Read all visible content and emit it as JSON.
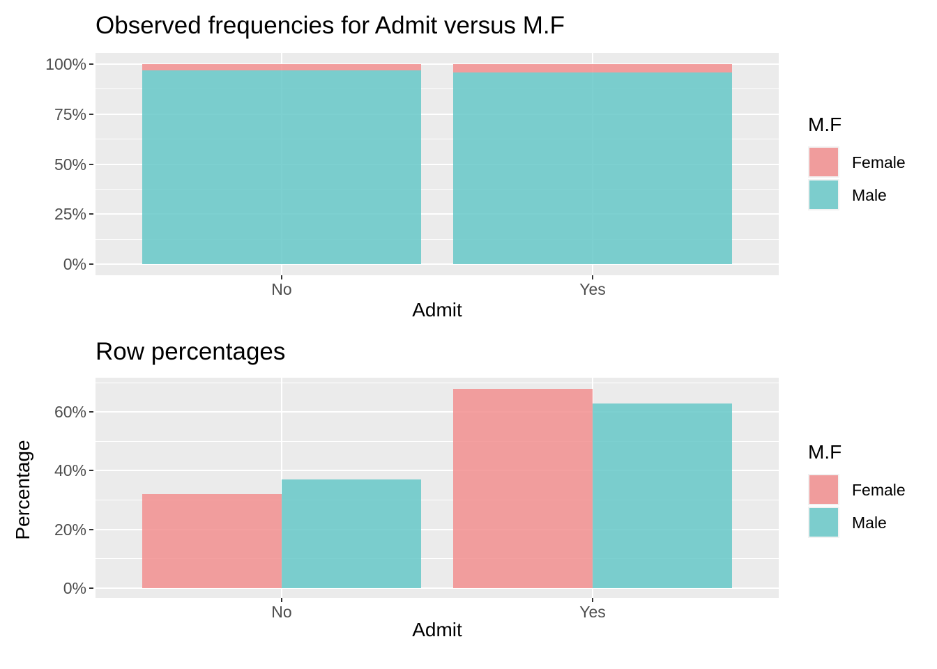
{
  "page": {
    "background": "#FFFFFF"
  },
  "styles": {
    "panel_background": "#EBEBEB",
    "grid_color": "#FFFFFF",
    "tick_label_color": "#4D4D4D",
    "tick_mark_color": "#333333",
    "text_color": "#000000",
    "legend_key_background": "#F2F2F2",
    "female_color": "#F09C9C",
    "male_color": "#7CCDCD"
  },
  "chart_data": [
    {
      "type": "bar",
      "variant": "stacked_fill_100",
      "title": "Observed frequencies for Admit versus M.F",
      "xlabel": "Admit",
      "ylabel": "",
      "legend_title": "M.F",
      "legend_position": "right",
      "grid": true,
      "categories": [
        "No",
        "Yes"
      ],
      "series": [
        {
          "name": "Female",
          "color": "#F09C9C",
          "bar_color": "rgba(241,139,139,0.82)",
          "values": [
            3.3,
            4.2
          ]
        },
        {
          "name": "Male",
          "color": "#7CCDCD",
          "bar_color": "rgba(96,198,198,0.82)",
          "values": [
            96.7,
            95.8
          ]
        }
      ],
      "value_format": "percent",
      "ylim": [
        -5.4,
        105.4
      ],
      "yticks": [
        0,
        25,
        50,
        75,
        100
      ],
      "ytick_labels": [
        "0%",
        "25%",
        "50%",
        "75%",
        "100%"
      ],
      "yminor": [
        12.5,
        37.5,
        62.5,
        87.5
      ]
    },
    {
      "type": "bar",
      "variant": "grouped",
      "title": "Row percentages",
      "xlabel": "Admit",
      "ylabel": "Percentage",
      "legend_title": "M.F",
      "legend_position": "right",
      "grid": true,
      "categories": [
        "No",
        "Yes"
      ],
      "series": [
        {
          "name": "Female",
          "color": "#F09C9C",
          "bar_color": "rgba(241,139,139,0.82)",
          "values": [
            32,
            68
          ]
        },
        {
          "name": "Male",
          "color": "#7CCDCD",
          "bar_color": "rgba(96,198,198,0.82)",
          "values": [
            37,
            63
          ]
        }
      ],
      "value_format": "percent",
      "ylim": [
        -3.4,
        71.7
      ],
      "yticks": [
        0,
        20,
        40,
        60
      ],
      "ytick_labels": [
        "0%",
        "20%",
        "40%",
        "60%"
      ],
      "yminor": [
        10,
        30,
        50,
        70
      ]
    }
  ]
}
